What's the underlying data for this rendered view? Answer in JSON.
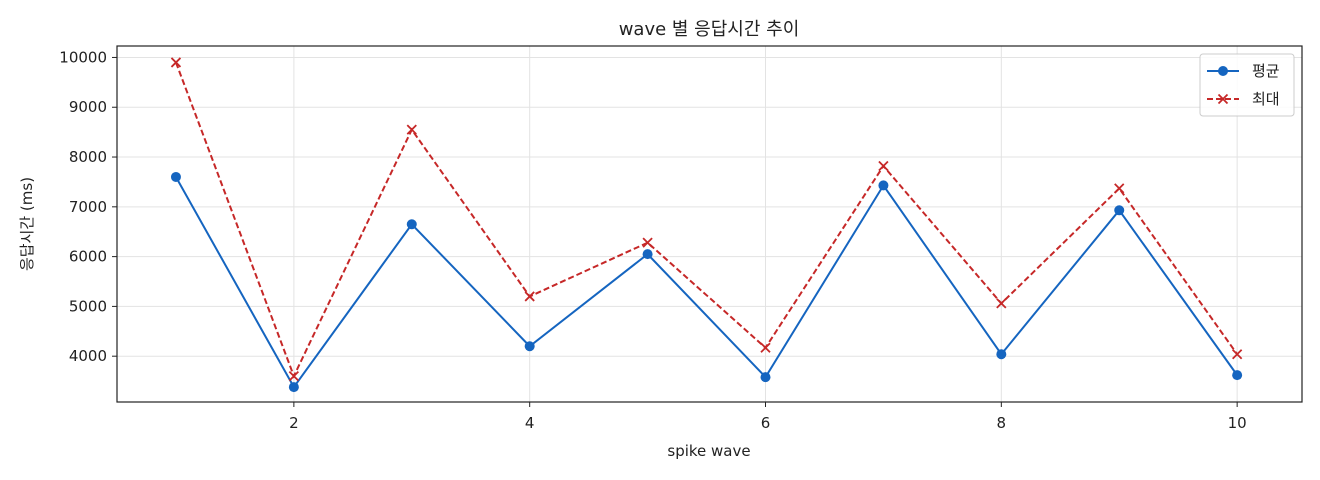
{
  "chart_data": {
    "type": "line",
    "title": "wave 별 응답시간 추이",
    "xlabel": "spike wave",
    "ylabel": "응답시간 (ms)",
    "x": [
      1,
      2,
      3,
      4,
      5,
      6,
      7,
      8,
      9,
      10
    ],
    "xlim": [
      0.5,
      10.55
    ],
    "ylim": [
      3080,
      10230
    ],
    "x_ticks": [
      2,
      4,
      6,
      8,
      10
    ],
    "y_ticks": [
      4000,
      5000,
      6000,
      7000,
      8000,
      9000,
      10000
    ],
    "grid": true,
    "legend_position": "top-right",
    "series": [
      {
        "name": "평균",
        "color": "#1565c0",
        "line_style": "solid",
        "marker": "circle",
        "values": [
          7600,
          3380,
          6650,
          4200,
          6050,
          3580,
          7430,
          4040,
          6930,
          3620
        ]
      },
      {
        "name": "최대",
        "color": "#c62828",
        "line_style": "dashed",
        "marker": "x",
        "values": [
          9900,
          3600,
          8550,
          5200,
          6280,
          4170,
          7820,
          5060,
          7370,
          4040
        ]
      }
    ]
  }
}
